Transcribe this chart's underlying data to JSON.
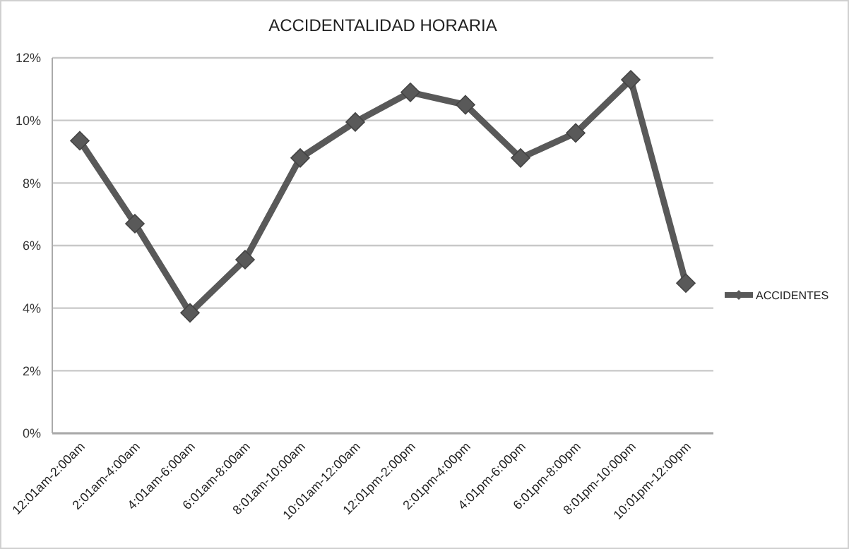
{
  "chart_data": {
    "type": "line",
    "title": "ACCIDENTALIDAD HORARIA",
    "categories": [
      "12:01am-2:00am",
      "2:01am-4:00am",
      "4:01am-6:00am",
      "6:01am-8:00am",
      "8:01am-10:00am",
      "10:01am-12:00am",
      "12:01pm-2:00pm",
      "2:01pm-4:00pm",
      "4:01pm-6:00pm",
      "6:01pm-8:00pm",
      "8:01pm-10:00pm",
      "10:01pm-12:00pm"
    ],
    "series": [
      {
        "name": "ACCIDENTES",
        "color": "#595959",
        "values": [
          9.35,
          6.7,
          3.85,
          5.55,
          8.8,
          9.95,
          10.9,
          10.5,
          8.8,
          9.6,
          11.3,
          4.8
        ]
      }
    ],
    "ylim": [
      0,
      12
    ],
    "yticks": [
      {
        "value": 0,
        "label": "0%"
      },
      {
        "value": 2,
        "label": "2%"
      },
      {
        "value": 4,
        "label": "4%"
      },
      {
        "value": 6,
        "label": "6%"
      },
      {
        "value": 8,
        "label": "8%"
      },
      {
        "value": 10,
        "label": "10%"
      },
      {
        "value": 12,
        "label": "12%"
      }
    ],
    "grid": "y",
    "legend": "right",
    "marker": "diamond",
    "line_style": "solid"
  }
}
